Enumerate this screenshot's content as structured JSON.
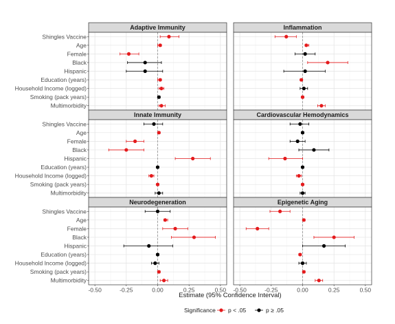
{
  "chart_data": {
    "type": "scatter",
    "subtype": "forest-plot-faceted",
    "xlabel": "Estimate (95% Confidence Interval)",
    "xlim": [
      -0.55,
      0.55
    ],
    "xticks": [
      -0.5,
      -0.25,
      0,
      0.25,
      0.5
    ],
    "xtick_labels": [
      "-0.50",
      "-0.25",
      "0.00",
      "0.25",
      "0.50"
    ],
    "grid": true,
    "reference_line": 0,
    "categories": [
      "Shingles Vaccine",
      "Age",
      "Female",
      "Black",
      "Hispanic",
      "Education (years)",
      "Household Income (logged)",
      "Smoking (pack years)",
      "Multimorbidity"
    ],
    "legend": {
      "title": "Significance",
      "position": "bottom",
      "entries": [
        {
          "label": "p < .05",
          "color": "#e41a1c"
        },
        {
          "label": "p ≥ .05",
          "color": "#000000"
        }
      ]
    },
    "panels": [
      {
        "title": "Adaptive Immunity",
        "points": [
          {
            "estimate": 0.09,
            "lower": 0.02,
            "upper": 0.17,
            "significant": true
          },
          {
            "estimate": 0.02,
            "lower": 0.0,
            "upper": 0.03,
            "significant": true
          },
          {
            "estimate": -0.23,
            "lower": -0.3,
            "upper": -0.15,
            "significant": true
          },
          {
            "estimate": -0.1,
            "lower": -0.24,
            "upper": 0.03,
            "significant": false
          },
          {
            "estimate": -0.1,
            "lower": -0.25,
            "upper": 0.04,
            "significant": false
          },
          {
            "estimate": 0.02,
            "lower": 0.0,
            "upper": 0.03,
            "significant": true
          },
          {
            "estimate": 0.03,
            "lower": 0.01,
            "upper": 0.05,
            "significant": true
          },
          {
            "estimate": 0.01,
            "lower": 0.0,
            "upper": 0.02,
            "significant": false
          },
          {
            "estimate": 0.03,
            "lower": 0.01,
            "upper": 0.06,
            "significant": true
          }
        ]
      },
      {
        "title": "Inflammation",
        "points": [
          {
            "estimate": -0.13,
            "lower": -0.22,
            "upper": -0.05,
            "significant": true
          },
          {
            "estimate": 0.03,
            "lower": 0.02,
            "upper": 0.05,
            "significant": true
          },
          {
            "estimate": 0.02,
            "lower": -0.06,
            "upper": 0.1,
            "significant": false
          },
          {
            "estimate": 0.2,
            "lower": 0.04,
            "upper": 0.36,
            "significant": true
          },
          {
            "estimate": 0.02,
            "lower": -0.15,
            "upper": 0.18,
            "significant": false
          },
          {
            "estimate": -0.01,
            "lower": -0.02,
            "upper": 0.0,
            "significant": true
          },
          {
            "estimate": 0.01,
            "lower": -0.02,
            "upper": 0.04,
            "significant": false
          },
          {
            "estimate": 0.0,
            "lower": -0.01,
            "upper": 0.01,
            "significant": true
          },
          {
            "estimate": 0.15,
            "lower": 0.12,
            "upper": 0.18,
            "significant": true
          }
        ]
      },
      {
        "title": "Innate Immunity",
        "points": [
          {
            "estimate": -0.03,
            "lower": -0.11,
            "upper": 0.04,
            "significant": false
          },
          {
            "estimate": 0.01,
            "lower": 0.0,
            "upper": 0.02,
            "significant": true
          },
          {
            "estimate": -0.18,
            "lower": -0.25,
            "upper": -0.11,
            "significant": true
          },
          {
            "estimate": -0.25,
            "lower": -0.39,
            "upper": -0.11,
            "significant": true
          },
          {
            "estimate": 0.28,
            "lower": 0.14,
            "upper": 0.42,
            "significant": true
          },
          {
            "estimate": 0.0,
            "lower": -0.01,
            "upper": 0.01,
            "significant": false
          },
          {
            "estimate": -0.05,
            "lower": -0.07,
            "upper": -0.03,
            "significant": true
          },
          {
            "estimate": 0.0,
            "lower": -0.01,
            "upper": 0.01,
            "significant": true
          },
          {
            "estimate": 0.01,
            "lower": -0.02,
            "upper": 0.04,
            "significant": false
          }
        ]
      },
      {
        "title": "Cardiovascular Hemodynamics",
        "points": [
          {
            "estimate": -0.02,
            "lower": -0.1,
            "upper": 0.05,
            "significant": false
          },
          {
            "estimate": 0.0,
            "lower": -0.01,
            "upper": 0.01,
            "significant": false
          },
          {
            "estimate": -0.04,
            "lower": -0.1,
            "upper": 0.02,
            "significant": false
          },
          {
            "estimate": 0.09,
            "lower": -0.03,
            "upper": 0.21,
            "significant": false
          },
          {
            "estimate": -0.14,
            "lower": -0.27,
            "upper": 0.0,
            "significant": true
          },
          {
            "estimate": 0.0,
            "lower": -0.01,
            "upper": 0.01,
            "significant": false
          },
          {
            "estimate": -0.03,
            "lower": -0.05,
            "upper": -0.01,
            "significant": true
          },
          {
            "estimate": 0.0,
            "lower": -0.01,
            "upper": 0.01,
            "significant": true
          },
          {
            "estimate": 0.0,
            "lower": -0.02,
            "upper": 0.02,
            "significant": false
          }
        ]
      },
      {
        "title": "Neurodegeneration",
        "points": [
          {
            "estimate": 0.0,
            "lower": -0.1,
            "upper": 0.1,
            "significant": false
          },
          {
            "estimate": 0.06,
            "lower": 0.05,
            "upper": 0.08,
            "significant": true
          },
          {
            "estimate": 0.14,
            "lower": 0.04,
            "upper": 0.24,
            "significant": true
          },
          {
            "estimate": 0.29,
            "lower": 0.11,
            "upper": 0.46,
            "significant": true
          },
          {
            "estimate": -0.07,
            "lower": -0.27,
            "upper": 0.12,
            "significant": false
          },
          {
            "estimate": 0.0,
            "lower": -0.01,
            "upper": 0.01,
            "significant": false
          },
          {
            "estimate": -0.02,
            "lower": -0.05,
            "upper": 0.01,
            "significant": false
          },
          {
            "estimate": 0.01,
            "lower": 0.0,
            "upper": 0.02,
            "significant": true
          },
          {
            "estimate": 0.05,
            "lower": 0.02,
            "upper": 0.08,
            "significant": true
          }
        ]
      },
      {
        "title": "Epigenetic Aging",
        "points": [
          {
            "estimate": -0.18,
            "lower": -0.26,
            "upper": -0.1,
            "significant": true
          },
          {
            "estimate": 0.01,
            "lower": 0.0,
            "upper": 0.02,
            "significant": true
          },
          {
            "estimate": -0.36,
            "lower": -0.45,
            "upper": -0.27,
            "significant": true
          },
          {
            "estimate": 0.25,
            "lower": 0.09,
            "upper": 0.41,
            "significant": true
          },
          {
            "estimate": 0.17,
            "lower": 0.0,
            "upper": 0.34,
            "significant": false
          },
          {
            "estimate": -0.02,
            "lower": -0.03,
            "upper": -0.01,
            "significant": true
          },
          {
            "estimate": 0.0,
            "lower": -0.03,
            "upper": 0.03,
            "significant": false
          },
          {
            "estimate": 0.01,
            "lower": 0.0,
            "upper": 0.02,
            "significant": true
          },
          {
            "estimate": 0.13,
            "lower": 0.1,
            "upper": 0.16,
            "significant": true
          }
        ]
      }
    ]
  }
}
